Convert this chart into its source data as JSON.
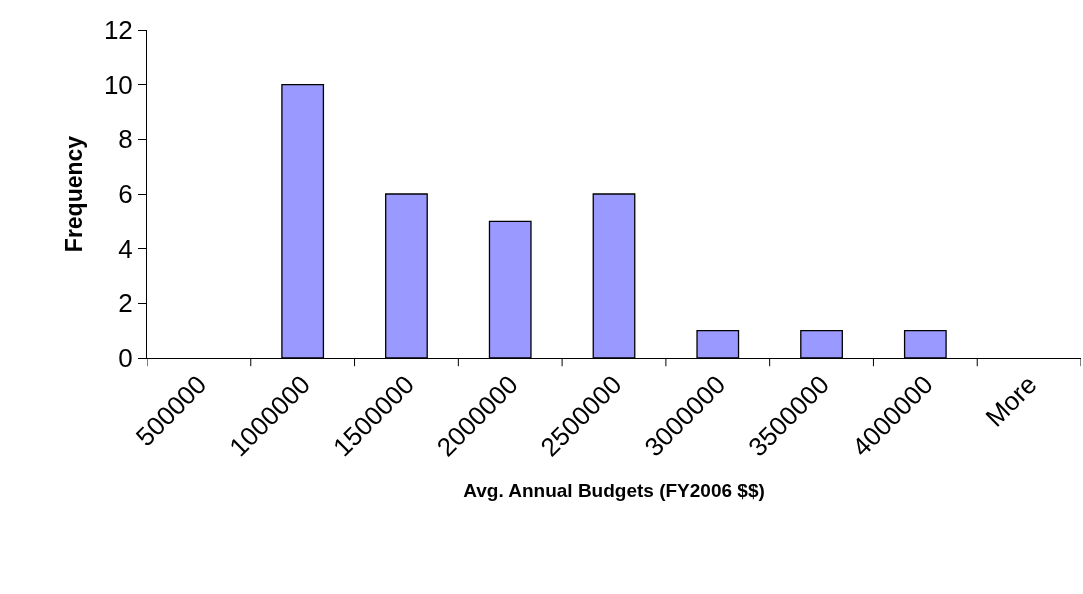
{
  "chart_data": {
    "type": "bar",
    "xlabel": "Avg. Annual Budgets (FY2006 $$)",
    "ylabel": "Frequency",
    "categories": [
      "500000",
      "1000000",
      "1500000",
      "2000000",
      "2500000",
      "3000000",
      "3500000",
      "4000000",
      "More"
    ],
    "values": [
      0,
      10,
      6,
      5,
      6,
      1,
      1,
      1,
      0
    ],
    "color": "#9999ff",
    "ylim": [
      0,
      12
    ],
    "yticks": [
      0,
      2,
      4,
      6,
      8,
      10,
      12
    ],
    "grid": false
  }
}
